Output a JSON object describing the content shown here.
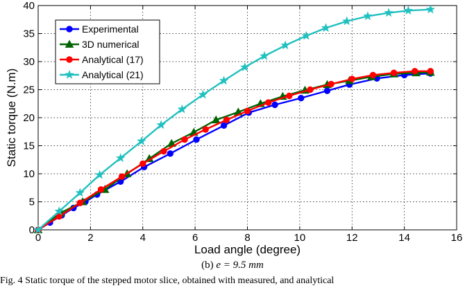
{
  "chart_data": {
    "type": "line",
    "xlabel": "Load angle (degree)",
    "ylabel": "Static torque (N.m)",
    "xlim": [
      0,
      16
    ],
    "ylim": [
      0,
      40
    ],
    "xticks": [
      0,
      2,
      4,
      6,
      8,
      10,
      12,
      14,
      16
    ],
    "yticks": [
      0,
      5,
      10,
      15,
      20,
      25,
      30,
      35,
      40
    ],
    "grid": true,
    "legend_position": "top-left",
    "series": [
      {
        "name": "Experimental",
        "color": "#0000ff",
        "marker": "circle",
        "x": [
          0,
          0.45,
          0.9,
          1.35,
          1.8,
          2.25,
          3.15,
          4.05,
          5.05,
          6.05,
          7.1,
          8.05,
          9.05,
          10.05,
          11.05,
          11.9,
          12.95,
          14,
          15
        ],
        "y": [
          0,
          1.3,
          2.6,
          3.9,
          5.0,
          6.3,
          8.6,
          11.2,
          13.6,
          16.1,
          18.6,
          20.9,
          22.3,
          23.5,
          24.8,
          25.9,
          27.0,
          27.6,
          27.9
        ]
      },
      {
        "name": "3D numerical",
        "color": "#006400",
        "marker": "triangle",
        "x": [
          0,
          0.85,
          1.7,
          2.55,
          3.4,
          4.25,
          5.1,
          5.95,
          6.8,
          7.65,
          8.5,
          9.35,
          10.2,
          11.05,
          11.9,
          12.75,
          13.6,
          14.45,
          15
        ],
        "y": [
          0,
          3.0,
          5.0,
          7.2,
          10.0,
          12.7,
          15.4,
          17.4,
          19.6,
          21.0,
          22.5,
          23.8,
          24.9,
          25.9,
          26.6,
          27.3,
          27.8,
          28.0,
          28.1
        ]
      },
      {
        "name": "Analytical (17)",
        "color": "#ff0000",
        "marker": "circle",
        "x": [
          0,
          0.8,
          1.6,
          2.4,
          3.2,
          4.0,
          4.8,
          5.6,
          6.4,
          7.2,
          8.0,
          8.8,
          9.6,
          10.4,
          11.2,
          12.0,
          12.8,
          13.6,
          14.4,
          15
        ],
        "y": [
          0,
          2.4,
          4.8,
          7.2,
          9.5,
          11.8,
          14.0,
          16.1,
          17.9,
          19.6,
          21.2,
          22.7,
          23.9,
          25.0,
          26.0,
          26.9,
          27.6,
          28.0,
          28.3,
          28.3
        ]
      },
      {
        "name": "Analytical (21)",
        "color": "#20c0c0",
        "marker": "star",
        "x": [
          0,
          0.8,
          1.6,
          2.35,
          3.15,
          3.95,
          4.7,
          5.5,
          6.3,
          7.1,
          7.9,
          8.65,
          9.45,
          10.25,
          11.0,
          11.8,
          12.6,
          13.4,
          14.15,
          15
        ],
        "y": [
          0,
          3.3,
          6.6,
          9.8,
          12.8,
          15.8,
          18.7,
          21.5,
          24.1,
          26.6,
          29.0,
          31.0,
          32.9,
          34.6,
          36.0,
          37.2,
          38.1,
          38.7,
          39.1,
          39.3
        ]
      }
    ]
  },
  "caption": {
    "sub_prefix": "(b) ",
    "sub_math": "e = 9.5 mm",
    "figure_text": "Fig. 4 Static torque of the stepped motor slice, obtained with measured, and analytical"
  }
}
